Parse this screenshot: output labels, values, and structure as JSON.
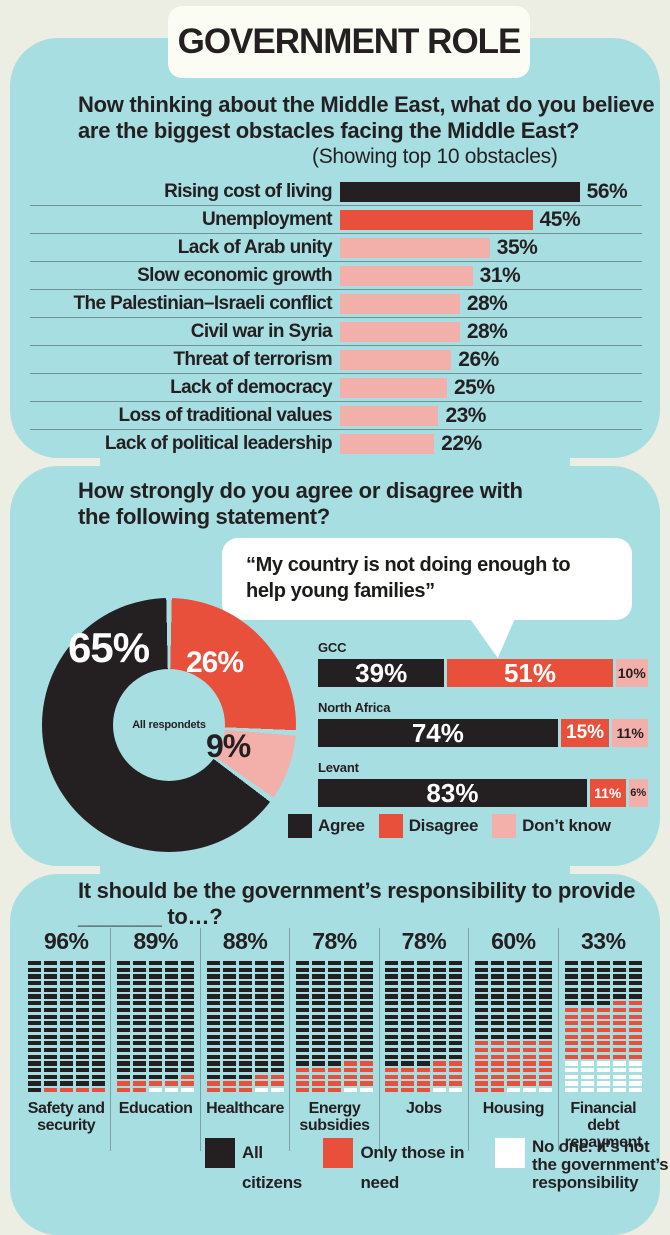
{
  "title": "GOVERNMENT ROLE",
  "colors": {
    "background": "#ecede3",
    "panel": "#a7dee1",
    "black": "#241f21",
    "red": "#e8503c",
    "pink": "#f3afaa",
    "white": "#ffffff",
    "card": "#fbfcf4"
  },
  "section1": {
    "heading": "Now thinking about the Middle East, what do you believe are the biggest obstacles facing the Middle East?",
    "note": "(Showing top 10 obstacles)",
    "bars": [
      {
        "label": "Rising cost of living",
        "value": 56,
        "color": "black"
      },
      {
        "label": "Unemployment",
        "value": 45,
        "color": "red"
      },
      {
        "label": "Lack of Arab unity",
        "value": 35,
        "color": "pink"
      },
      {
        "label": "Slow economic growth",
        "value": 31,
        "color": "pink"
      },
      {
        "label": "The Palestinian–Israeli conflict",
        "value": 28,
        "color": "pink"
      },
      {
        "label": "Civil war in Syria",
        "value": 28,
        "color": "pink"
      },
      {
        "label": "Threat of terrorism",
        "value": 26,
        "color": "pink"
      },
      {
        "label": "Lack of democracy",
        "value": 25,
        "color": "pink"
      },
      {
        "label": "Loss of traditional values",
        "value": 23,
        "color": "pink"
      },
      {
        "label": "Lack of political leadership",
        "value": 22,
        "color": "pink"
      }
    ]
  },
  "section2": {
    "heading": "How strongly do you agree or disagree with the following statement?",
    "quote": "“My country is not doing enough to help young families”",
    "donut": {
      "center_label": "All respondets",
      "agree": 65,
      "disagree": 26,
      "dont_know": 9
    },
    "groups": [
      {
        "name": "GCC",
        "agree": 39,
        "disagree": 51,
        "dont_know": 10
      },
      {
        "name": "North Africa",
        "agree": 74,
        "disagree": 15,
        "dont_know": 11
      },
      {
        "name": "Levant",
        "agree": 83,
        "disagree": 11,
        "dont_know": 6
      }
    ],
    "legend": [
      {
        "label": "Agree",
        "color": "black"
      },
      {
        "label": "Disagree",
        "color": "red"
      },
      {
        "label": "Don’t know",
        "color": "pink"
      }
    ]
  },
  "section3": {
    "heading": "It should be the government’s responsibility to provide _______ to…?",
    "categories": [
      {
        "label": "Safety and security",
        "pct": 96,
        "all_citizens": 96,
        "only_in_need": 4,
        "no_one": 0
      },
      {
        "label": "Education",
        "pct": 89,
        "all_citizens": 89,
        "only_in_need": 8,
        "no_one": 3
      },
      {
        "label": "Healthcare",
        "pct": 88,
        "all_citizens": 88,
        "only_in_need": 10,
        "no_one": 2
      },
      {
        "label": "Energy subsidies",
        "pct": 78,
        "all_citizens": 78,
        "only_in_need": 20,
        "no_one": 2
      },
      {
        "label": "Jobs",
        "pct": 78,
        "all_citizens": 78,
        "only_in_need": 20,
        "no_one": 2
      },
      {
        "label": "Housing",
        "pct": 60,
        "all_citizens": 60,
        "only_in_need": 37,
        "no_one": 3
      },
      {
        "label": "Financial debt repayment",
        "pct": 33,
        "all_citizens": 33,
        "only_in_need": 42,
        "no_one": 25
      }
    ],
    "legend": [
      {
        "label": "All citizens",
        "color": "black"
      },
      {
        "label": "Only those in need",
        "color": "red"
      },
      {
        "label": "No one. It’s not the government’s responsibility",
        "color": "white"
      }
    ]
  },
  "chart_data": [
    {
      "type": "bar",
      "orientation": "horizontal",
      "title": "Now thinking about the Middle East, what do you believe are the biggest obstacles facing the Middle East?",
      "subtitle": "(Showing top 10 obstacles)",
      "categories": [
        "Rising cost of living",
        "Unemployment",
        "Lack of Arab unity",
        "Slow economic growth",
        "The Palestinian–Israeli conflict",
        "Civil war in Syria",
        "Threat of terrorism",
        "Lack of democracy",
        "Loss of traditional values",
        "Lack of political leadership"
      ],
      "values": [
        56,
        45,
        35,
        31,
        28,
        28,
        26,
        25,
        23,
        22
      ],
      "unit": "%",
      "xlim": [
        0,
        60
      ],
      "grid": false
    },
    {
      "type": "pie",
      "donut": true,
      "title": "How strongly do you agree or disagree with the following statement? — “My country is not doing enough to help young families”",
      "center_label": "All respondets",
      "labels": [
        "Agree",
        "Disagree",
        "Don’t know"
      ],
      "values": [
        65,
        26,
        9
      ],
      "unit": "%"
    },
    {
      "type": "stacked-bar",
      "orientation": "horizontal",
      "categories": [
        "GCC",
        "North Africa",
        "Levant"
      ],
      "series": [
        {
          "name": "Agree",
          "values": [
            39,
            74,
            83
          ]
        },
        {
          "name": "Disagree",
          "values": [
            51,
            15,
            11
          ]
        },
        {
          "name": "Don’t know",
          "values": [
            10,
            11,
            6
          ]
        }
      ],
      "unit": "%",
      "legend_position": "bottom"
    },
    {
      "type": "waffle",
      "title": "It should be the government’s responsibility to provide _______ to…?",
      "categories": [
        "Safety and security",
        "Education",
        "Healthcare",
        "Energy subsidies",
        "Jobs",
        "Housing",
        "Financial debt repayment"
      ],
      "series": [
        {
          "name": "All citizens",
          "values": [
            96,
            89,
            88,
            78,
            78,
            60,
            33
          ]
        },
        {
          "name": "Only those in need",
          "values": [
            4,
            8,
            10,
            20,
            20,
            37,
            42
          ]
        },
        {
          "name": "No one. It’s not the government’s responsibility",
          "values": [
            0,
            3,
            2,
            2,
            2,
            3,
            25
          ]
        }
      ],
      "unit": "%",
      "legend_position": "bottom"
    }
  ]
}
